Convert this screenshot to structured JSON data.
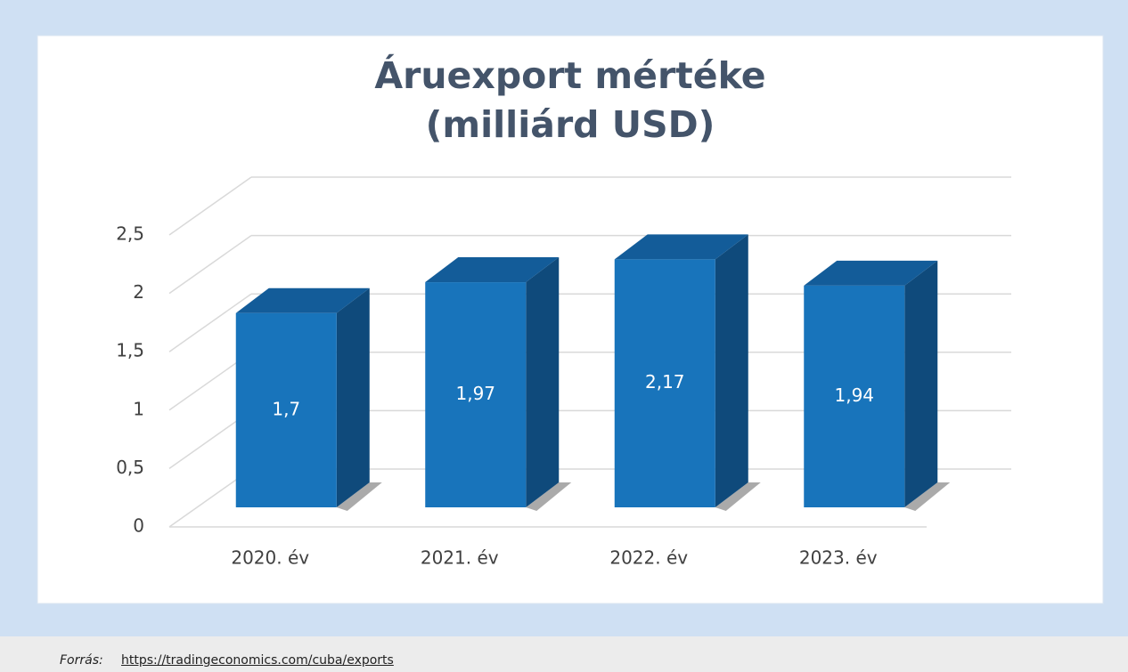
{
  "chart_data": {
    "type": "bar3d",
    "title": [
      "Áruexport mértéke",
      "(milliárd USD)"
    ],
    "categories": [
      "2020. év",
      "2021. év",
      "2022. év",
      "2023. év"
    ],
    "values": [
      1.7,
      1.97,
      2.17,
      1.94
    ],
    "value_labels": [
      "1,7",
      "1,97",
      "2,17",
      "1,94"
    ],
    "color": "#1874bb",
    "ylim": [
      0,
      2.5
    ],
    "yticks": [
      0,
      {
        "value": 0.5,
        "label": "0,5"
      },
      1,
      {
        "value": 1.5,
        "label": "1,5"
      },
      2,
      {
        "value": 2.5,
        "label": "2,5"
      }
    ],
    "grid": true
  },
  "footer": {
    "label": "Forrás:",
    "link": "https://tradingeconomics.com/cuba/exports"
  }
}
